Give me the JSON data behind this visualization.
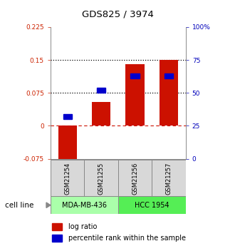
{
  "title": "GDS825 / 3974",
  "samples": [
    "GSM21254",
    "GSM21255",
    "GSM21256",
    "GSM21257"
  ],
  "log_ratios": [
    -0.1,
    0.055,
    0.14,
    0.15
  ],
  "percentile_ranks_pct": [
    32,
    52,
    63,
    63
  ],
  "ylim_left": [
    -0.075,
    0.225
  ],
  "ylim_right": [
    0,
    100
  ],
  "hlines_dotted": [
    0.075,
    0.15
  ],
  "hline_zero": 0,
  "cell_lines": [
    {
      "label": "MDA-MB-436",
      "samples": [
        0,
        1
      ],
      "color": "#aaffaa"
    },
    {
      "label": "HCC 1954",
      "samples": [
        2,
        3
      ],
      "color": "#55ee55"
    }
  ],
  "bar_color": "#cc1100",
  "square_color": "#0000cc",
  "left_tick_color": "#cc2200",
  "right_tick_color": "#0000bb",
  "yticks_left": [
    -0.075,
    0,
    0.075,
    0.15,
    0.225
  ],
  "yticks_right": [
    0,
    25,
    50,
    75,
    100
  ],
  "ytick_labels_left": [
    "-0.075",
    "0",
    "0.075",
    "0.15",
    "0.225"
  ],
  "ytick_labels_right": [
    "0",
    "25",
    "50",
    "75",
    "100%"
  ],
  "bg_color": "#d8d8d8",
  "cell_line_label": "cell line"
}
